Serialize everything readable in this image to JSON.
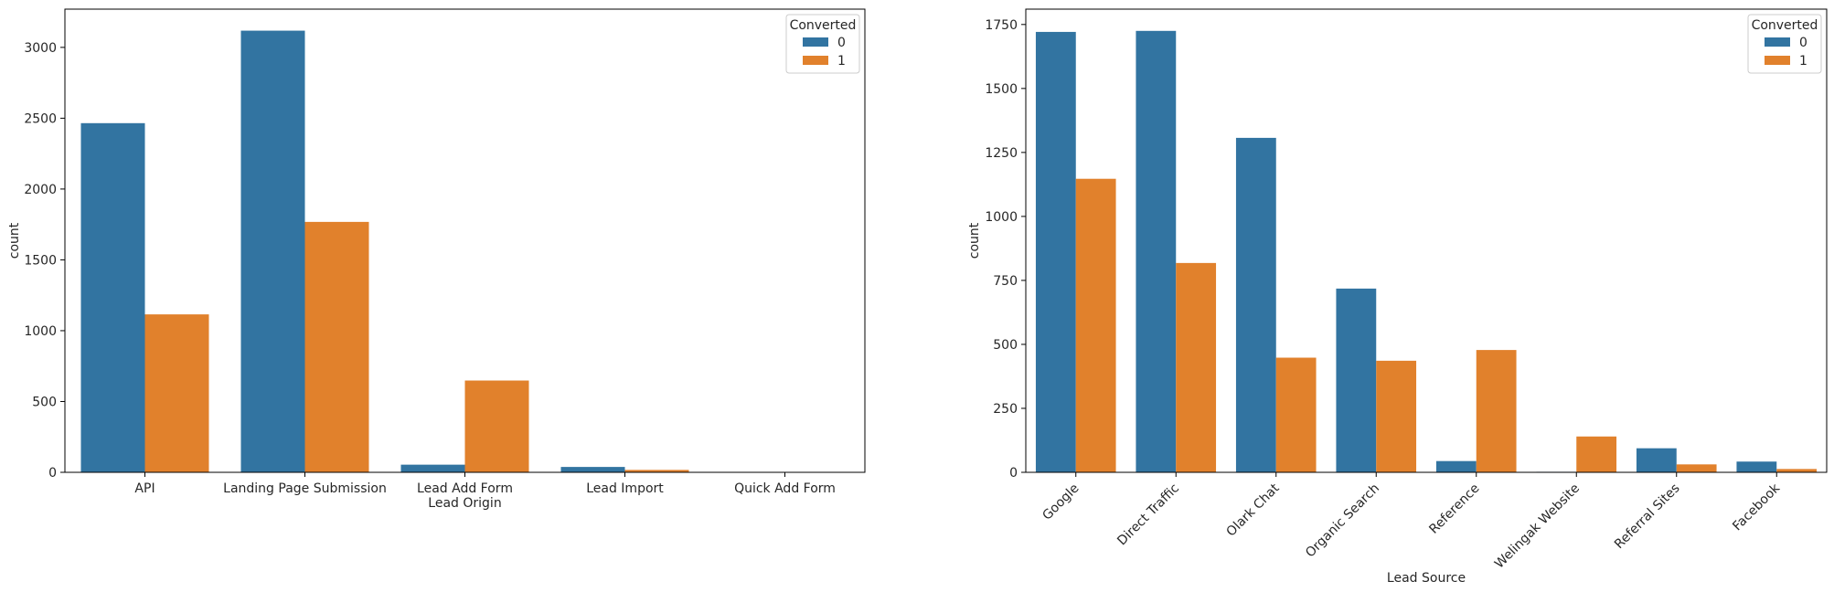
{
  "chart_data": [
    {
      "type": "bar",
      "xlabel": "Lead Origin",
      "ylabel": "count",
      "categories": [
        "API",
        "Landing Page Submission",
        "Lead Add Form",
        "Lead Import",
        "Quick Add Form"
      ],
      "series": [
        {
          "name": "0",
          "values": [
            2465,
            3118,
            54,
            38,
            0
          ]
        },
        {
          "name": "1",
          "values": [
            1115,
            1768,
            648,
            17,
            1
          ]
        }
      ],
      "ylim": [
        0,
        3270
      ],
      "yticks": [
        0,
        500,
        1000,
        1500,
        2000,
        2500,
        3000
      ],
      "legend_title": "Converted",
      "legend_position": "top-right",
      "colors": {
        "0": "#3274a1",
        "1": "#e1812c"
      },
      "grid": false
    },
    {
      "type": "bar",
      "xlabel": "Lead Source",
      "ylabel": "count",
      "categories": [
        "Google",
        "Direct Traffic",
        "Olark Chat",
        "Organic Search",
        "Reference",
        "Welingak Website",
        "Referral Sites",
        "Facebook"
      ],
      "series": [
        {
          "name": "0",
          "values": [
            1721,
            1725,
            1307,
            718,
            44,
            2,
            94,
            42
          ]
        },
        {
          "name": "1",
          "values": [
            1147,
            818,
            448,
            436,
            478,
            140,
            31,
            13
          ]
        }
      ],
      "ylim": [
        0,
        1810
      ],
      "yticks": [
        0,
        250,
        500,
        750,
        1000,
        1250,
        1500,
        1750
      ],
      "legend_title": "Converted",
      "legend_position": "top-right",
      "colors": {
        "0": "#3274a1",
        "1": "#e1812c"
      },
      "grid": false
    }
  ]
}
